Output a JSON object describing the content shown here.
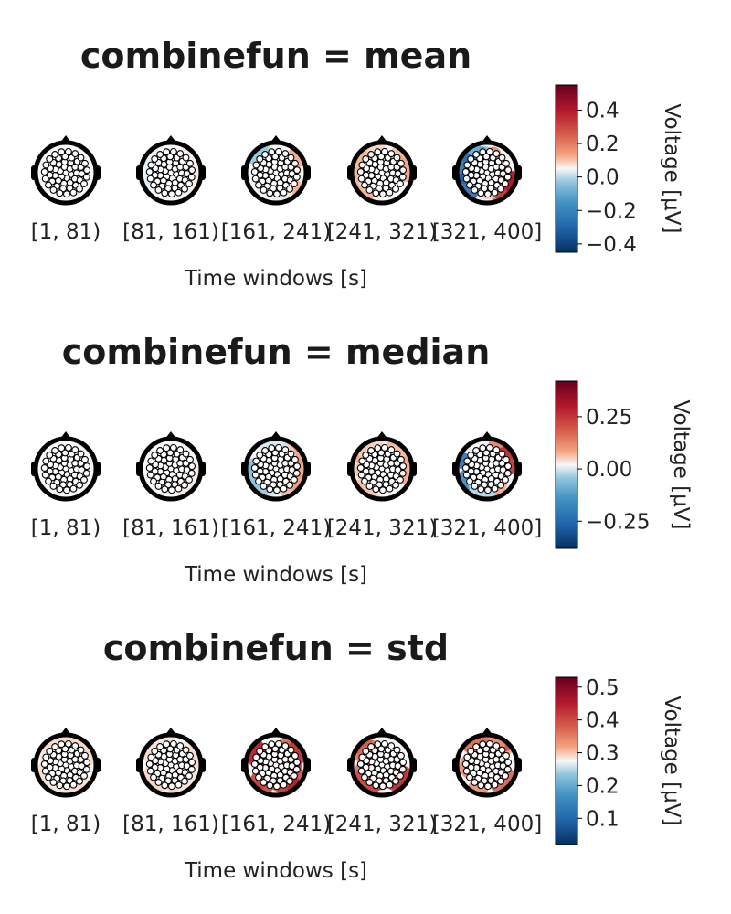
{
  "colors": {
    "negative": "#1f5fa6",
    "neutral": "#f7f7f7",
    "positive": "#a1122a",
    "outline": "#000000",
    "electrode_fill": "#ffffff"
  },
  "chart_data": [
    {
      "type": "heatmap",
      "subtype": "topoplot-series",
      "title": "combinefun = mean",
      "xlabel": "Time windows [s]",
      "categories": [
        "[1, 81)",
        "[81, 161)",
        "[161, 241)",
        "[241, 321)",
        "[321, 400]"
      ],
      "colorbar": {
        "label": "Voltage [μV]",
        "range": [
          -0.45,
          0.55
        ],
        "ticks": [
          0.4,
          0.2,
          0.0,
          -0.2,
          -0.4
        ],
        "tick_labels": [
          "0.4",
          "0.2",
          "0.0",
          "−0.2",
          "−0.4"
        ],
        "colormap": "RdBu_r"
      },
      "activity_levels": [
        0.0,
        0.02,
        0.15,
        0.2,
        0.5
      ]
    },
    {
      "type": "heatmap",
      "subtype": "topoplot-series",
      "title": "combinefun = median",
      "xlabel": "Time windows [s]",
      "categories": [
        "[1, 81)",
        "[81, 161)",
        "[161, 241)",
        "[241, 321)",
        "[321, 400]"
      ],
      "colorbar": {
        "label": "Voltage [μV]",
        "range": [
          -0.38,
          0.42
        ],
        "ticks": [
          0.25,
          0.0,
          -0.25
        ],
        "tick_labels": [
          "0.25",
          "0.00",
          "−0.25"
        ],
        "colormap": "RdBu_r"
      },
      "activity_levels": [
        0.0,
        0.02,
        0.15,
        0.2,
        0.5
      ]
    },
    {
      "type": "heatmap",
      "subtype": "topoplot-series",
      "title": "combinefun = std",
      "xlabel": "Time windows [s]",
      "categories": [
        "[1, 81)",
        "[81, 161)",
        "[161, 241)",
        "[241, 321)",
        "[321, 400]"
      ],
      "colorbar": {
        "label": "Voltage [μV]",
        "range": [
          0.02,
          0.53
        ],
        "ticks": [
          0.5,
          0.4,
          0.3,
          0.2,
          0.1
        ],
        "tick_labels": [
          "0.5",
          "0.4",
          "0.3",
          "0.2",
          "0.1"
        ],
        "colormap": "RdBu_r"
      },
      "activity_levels": [
        0.05,
        0.05,
        0.55,
        0.5,
        0.35
      ]
    }
  ]
}
